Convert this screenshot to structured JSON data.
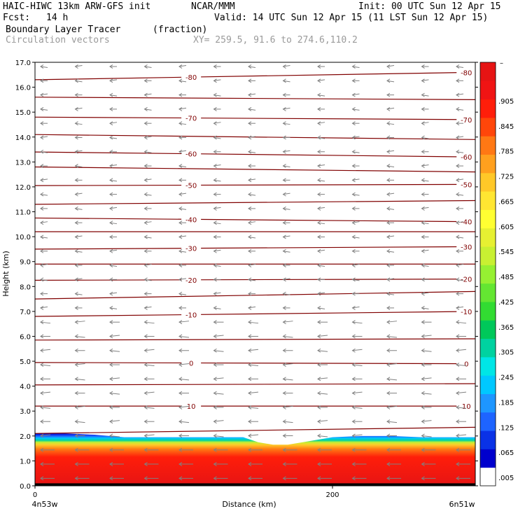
{
  "header": {
    "model": "HAIC-HIWC 13km ARW-GFS init",
    "org": "NCAR/MMM",
    "init": "Init: 00 UTC Sun 12 Apr 15",
    "fcst_label": "Fcst:",
    "fcst_value": "14 h",
    "valid": "Valid: 14 UTC Sun 12 Apr 15 (11 LST Sun 12 Apr 15)",
    "field": "Boundary Layer Tracer",
    "field_units": "(fraction)",
    "vectors": "Circulation vectors",
    "xy": "XY= 259.5, 91.6 to 274.6,110.2"
  },
  "colors": {
    "background": "#ffffff",
    "contour": "#800000",
    "vector": "#808080",
    "subtitle": "#9a9a9a"
  },
  "chart_data": {
    "type": "heatmap",
    "title": "Boundary Layer Tracer",
    "units": "(fraction)",
    "xlabel": "Distance (km)",
    "ylabel": "Height (km)",
    "xlim": [
      0,
      296
    ],
    "ylim": [
      0.0,
      17.0
    ],
    "x_tick_values": [
      0,
      200
    ],
    "x_tick_labels": [
      "0",
      "200"
    ],
    "x_end_labels": [
      "4n53w",
      "6n51w"
    ],
    "y_tick_labels": [
      "0.0",
      "1.0",
      "2.0",
      "3.0",
      "4.0",
      "5.0",
      "6.0",
      "7.0",
      "8.0",
      "9.0",
      "10.0",
      "11.0",
      "12.0",
      "13.0",
      "14.0",
      "15.0",
      "16.0",
      "17.0"
    ],
    "tracer_top_km": {
      "x": [
        0,
        20,
        40,
        60,
        80,
        100,
        120,
        140,
        150,
        160,
        170,
        180,
        200,
        220,
        240,
        260,
        280,
        296
      ],
      "y": [
        2.1,
        2.1,
        2.05,
        1.95,
        1.95,
        1.95,
        1.95,
        1.95,
        1.75,
        1.65,
        1.65,
        1.75,
        1.95,
        2.0,
        2.0,
        1.95,
        1.95,
        1.95
      ]
    },
    "colorbar": {
      "labels": [
        ".905",
        ".845",
        ".785",
        ".725",
        ".665",
        ".605",
        ".545",
        ".485",
        ".425",
        ".365",
        ".305",
        ".245",
        ".185",
        ".125",
        ".065",
        ".005"
      ],
      "top_label": "–",
      "colors_bottom_to_top": [
        "#ffffff",
        "#0000cd",
        "#0a32e6",
        "#1e64ff",
        "#1e96ff",
        "#00c8ff",
        "#00e6e6",
        "#00d2a0",
        "#00c85a",
        "#32dc32",
        "#64e632",
        "#96f032",
        "#c8f032",
        "#e6f032",
        "#ffff32",
        "#ffe632",
        "#ffc828",
        "#ffa01e",
        "#ff7814",
        "#ff460a",
        "#ff1e0a",
        "#f01414",
        "#e61414"
      ]
    },
    "contours": [
      {
        "label": "-80",
        "y_left": 16.3,
        "y_right": 16.6
      },
      {
        "label": "",
        "y_left": 15.6,
        "y_right": 15.5
      },
      {
        "label": "-70",
        "y_left": 14.8,
        "y_right": 14.7
      },
      {
        "label": "",
        "y_left": 14.1,
        "y_right": 13.9
      },
      {
        "label": "-60",
        "y_left": 13.4,
        "y_right": 13.2
      },
      {
        "label": "",
        "y_left": 12.8,
        "y_right": 12.6
      },
      {
        "label": "-50",
        "y_left": 12.05,
        "y_right": 12.1
      },
      {
        "label": "",
        "y_left": 11.3,
        "y_right": 11.45
      },
      {
        "label": "-40",
        "y_left": 10.75,
        "y_right": 10.6
      },
      {
        "label": "",
        "y_left": 10.2,
        "y_right": 10.2
      },
      {
        "label": "-30",
        "y_left": 9.5,
        "y_right": 9.6
      },
      {
        "label": "",
        "y_left": 8.9,
        "y_right": 8.9
      },
      {
        "label": "-20",
        "y_left": 8.25,
        "y_right": 8.3
      },
      {
        "label": "",
        "y_left": 7.5,
        "y_right": 7.8
      },
      {
        "label": "-10",
        "y_left": 6.8,
        "y_right": 7.0
      },
      {
        "label": "",
        "y_left": 5.85,
        "y_right": 5.9
      },
      {
        "label": "0",
        "y_left": 4.95,
        "y_right": 4.9
      },
      {
        "label": "",
        "y_left": 4.05,
        "y_right": 4.1
      },
      {
        "label": "10",
        "y_left": 3.2,
        "y_right": 3.2
      },
      {
        "label": "",
        "y_left": 2.1,
        "y_right": 2.35
      }
    ],
    "contour_label_x": [
      105,
      290
    ],
    "vector_direction": "westward, strongest inside the boundary layer"
  }
}
